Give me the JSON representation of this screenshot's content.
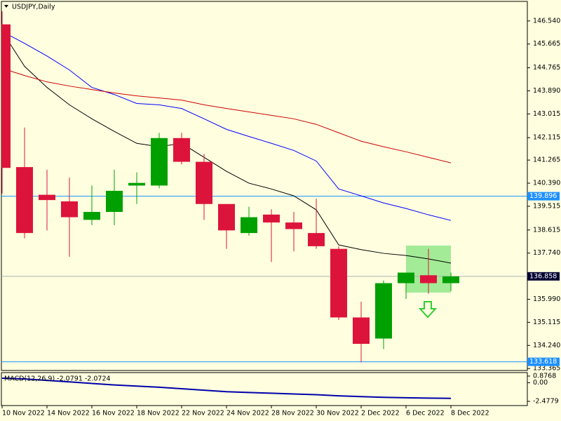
{
  "chart_data": [
    {
      "type": "candlestick",
      "title": "USDJPY,Daily",
      "categories": [
        "10 Nov 2022",
        null,
        "14 Nov 2022",
        null,
        "16 Nov 2022",
        null,
        "18 Nov 2022",
        null,
        "22 Nov 2022",
        null,
        "24 Nov 2022",
        null,
        "28 Nov 2022",
        null,
        "30 Nov 2022",
        null,
        "2 Dec 2022",
        null,
        "6 Dec 2022",
        null,
        "8 Dec 2022"
      ],
      "open": [
        146.41,
        141.0,
        139.95,
        139.7,
        139.0,
        139.3,
        140.3,
        140.3,
        142.1,
        141.2,
        139.6,
        138.5,
        139.2,
        138.9,
        138.5,
        137.9,
        135.3,
        134.5,
        136.6,
        136.9,
        136.6
      ],
      "high": [
        146.9,
        142.5,
        140.9,
        140.6,
        140.3,
        140.9,
        140.8,
        142.3,
        142.3,
        141.5,
        139.6,
        139.5,
        139.4,
        139.3,
        139.8,
        138.0,
        135.9,
        136.7,
        137.0,
        137.9,
        137.0
      ],
      "low": [
        140.0,
        138.3,
        138.6,
        137.6,
        138.8,
        138.8,
        139.6,
        140.2,
        141.1,
        139.0,
        137.9,
        138.4,
        137.4,
        137.8,
        137.9,
        135.2,
        133.6,
        134.1,
        136.0,
        136.2,
        136.3
      ],
      "close": [
        140.97,
        138.5,
        139.75,
        139.1,
        139.3,
        140.1,
        140.4,
        142.1,
        141.2,
        139.6,
        138.6,
        139.1,
        138.9,
        138.65,
        138.0,
        135.3,
        134.3,
        136.6,
        137.0,
        136.6,
        136.858
      ],
      "up_color": "#00a000",
      "down_color": "#dc143c",
      "lines": [
        {
          "color": "#000000",
          "values": [
            146.14,
            144.82,
            144.02,
            143.36,
            142.83,
            142.35,
            141.9,
            141.77,
            141.9,
            141.37,
            140.84,
            140.39,
            140.17,
            139.91,
            139.38,
            138.05,
            137.87,
            137.73,
            137.65,
            137.52,
            137.36
          ]
        },
        {
          "color": "#0000ff",
          "values": [
            146.14,
            145.69,
            145.21,
            144.68,
            144.02,
            143.75,
            143.41,
            143.36,
            143.22,
            142.83,
            142.43,
            142.16,
            141.9,
            141.63,
            141.23,
            140.17,
            139.91,
            139.64,
            139.43,
            139.19,
            138.98
          ]
        },
        {
          "color": "#cc0000",
          "values": [
            144.74,
            144.47,
            144.23,
            144.07,
            143.94,
            143.81,
            143.7,
            143.62,
            143.54,
            143.36,
            143.22,
            143.09,
            142.96,
            142.83,
            142.62,
            142.3,
            141.98,
            141.77,
            141.58,
            141.37,
            141.16
          ]
        }
      ],
      "price_lines": [
        {
          "value": 139.896,
          "color": "#1e90ff",
          "label_bg": "#1e90ff",
          "label_color": "#ffffff"
        },
        {
          "value": 136.858,
          "color": "#b0b0b0",
          "label_bg": "#000033",
          "label_color": "#ffffff"
        },
        {
          "value": 133.618,
          "color": "#1e90ff",
          "label_bg": "#1e90ff",
          "label_color": "#ffffff"
        }
      ],
      "ylim": [
        133.29,
        147.28
      ],
      "yticks": [
        {
          "value": 146.54,
          "label": "146.540"
        },
        145.665,
        144.765,
        {
          "value": 143.89,
          "label": "143.890"
        },
        143.015,
        142.115,
        141.265,
        {
          "value": 140.39,
          "label": "140.390"
        },
        139.515,
        138.615,
        {
          "value": 137.74,
          "label": "137.740"
        },
        {
          "value": 135.99,
          "label": "135.990"
        },
        135.115,
        {
          "value": 134.24,
          "label": "134.240"
        },
        133.365
      ]
    },
    {
      "type": "line",
      "title": "MACD(12,26,9) -2.0791 -2.0724",
      "color": "#0000aa",
      "values": [
        0.6,
        0.5,
        0.3,
        0.1,
        -0.1,
        -0.3,
        -0.45,
        -0.6,
        -0.8,
        -1.0,
        -1.2,
        -1.3,
        -1.4,
        -1.5,
        -1.6,
        -1.75,
        -1.85,
        -1.95,
        -2.0,
        -2.05,
        -2.0791
      ],
      "ylim": [
        -3.04,
        1.34
      ],
      "yticks": [
        0.8768,
        {
          "value": 0,
          "label": "0.00"
        },
        -2.4779
      ]
    }
  ]
}
